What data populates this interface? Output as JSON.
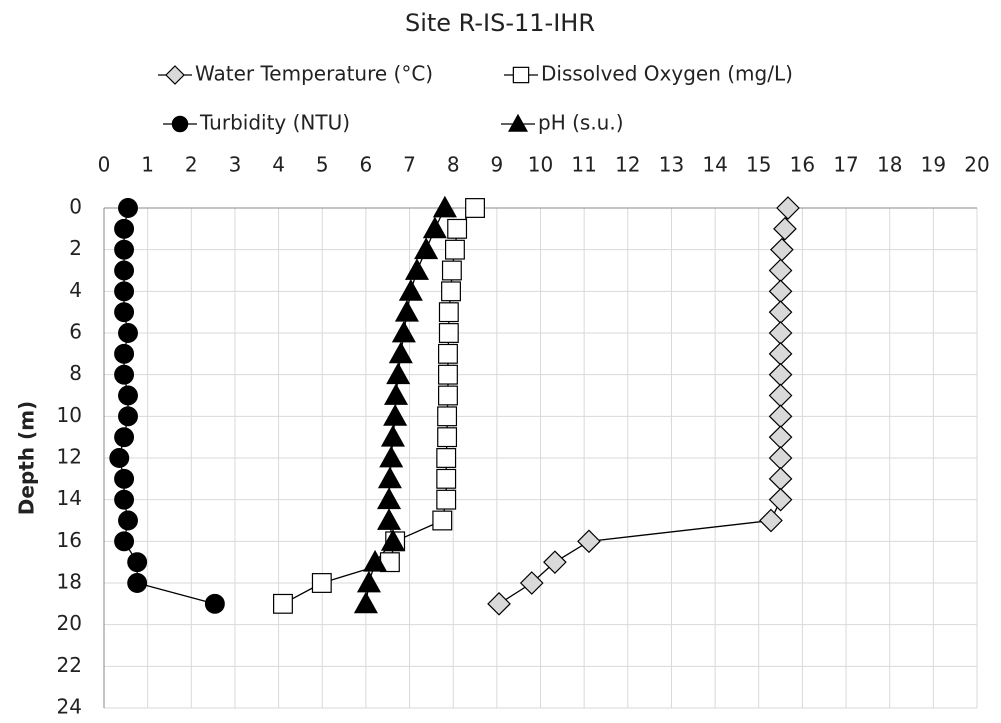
{
  "chart_data": {
    "type": "line",
    "title": "Site R-IS-11-IHR",
    "ylabel": "Depth (m)",
    "y": [
      0,
      1,
      2,
      3,
      4,
      5,
      6,
      7,
      8,
      9,
      10,
      11,
      12,
      13,
      14,
      15,
      16,
      17,
      18,
      19
    ],
    "xlim": [
      0,
      20
    ],
    "xticks": [
      0,
      1,
      2,
      3,
      4,
      5,
      6,
      7,
      8,
      9,
      10,
      11,
      12,
      13,
      14,
      15,
      16,
      17,
      18,
      19,
      20
    ],
    "ylim": [
      0,
      24
    ],
    "yticks": [
      0,
      2,
      4,
      6,
      8,
      10,
      12,
      14,
      16,
      18,
      20,
      22,
      24
    ],
    "y_inverted": true,
    "x_axis_position": "top",
    "grid": true,
    "legend": "top",
    "series": [
      {
        "name": "Water Temperature (°C)",
        "marker": "diamond",
        "color": "#d9d9d9",
        "values": [
          15.67,
          15.6,
          15.53,
          15.5,
          15.5,
          15.5,
          15.5,
          15.5,
          15.5,
          15.5,
          15.5,
          15.5,
          15.5,
          15.5,
          15.5,
          15.28,
          11.11,
          10.33,
          9.8,
          9.05
        ]
      },
      {
        "name": "Dissolved Oxygen (mg/L)",
        "marker": "square",
        "color": "#ffffff",
        "values": [
          8.5,
          8.09,
          8.04,
          7.97,
          7.95,
          7.9,
          7.9,
          7.88,
          7.88,
          7.88,
          7.86,
          7.86,
          7.84,
          7.84,
          7.84,
          7.75,
          6.67,
          6.55,
          4.99,
          4.1
        ]
      },
      {
        "name": "Turbidity (NTU)",
        "marker": "circle",
        "color": "#000000",
        "values": [
          0.55,
          0.46,
          0.46,
          0.46,
          0.46,
          0.46,
          0.55,
          0.46,
          0.46,
          0.55,
          0.55,
          0.46,
          0.35,
          0.46,
          0.46,
          0.55,
          0.46,
          0.76,
          0.76,
          2.54
        ]
      },
      {
        "name": "pH (s.u.)",
        "marker": "triangle",
        "color": "#000000",
        "values": [
          7.81,
          7.58,
          7.38,
          7.17,
          7.03,
          6.94,
          6.87,
          6.8,
          6.74,
          6.69,
          6.67,
          6.62,
          6.58,
          6.55,
          6.53,
          6.53,
          6.62,
          6.21,
          6.07,
          6.0
        ]
      }
    ]
  }
}
